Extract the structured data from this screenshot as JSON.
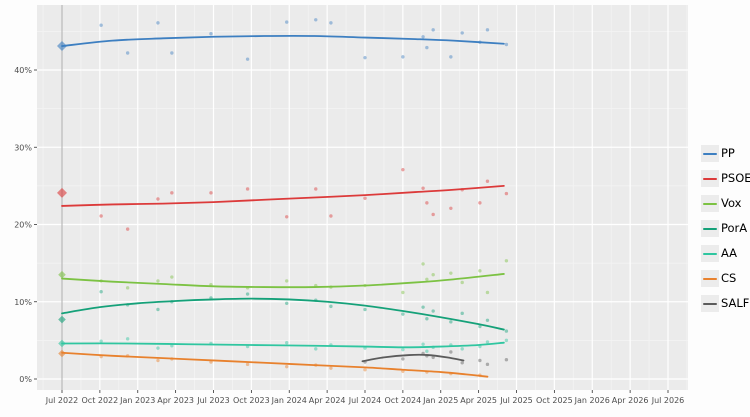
{
  "window": {
    "background": "#fdfdfd"
  },
  "chart_data": {
    "type": "scatter",
    "title": "",
    "subtitle": "",
    "xlabel": "",
    "ylabel": "",
    "grid": true,
    "panel": {
      "background": "#ebebeb",
      "grid_major_color": "#ffffff",
      "grid_minor_color": "#f4f4f4",
      "axis_text_color": "#4d4d4d",
      "election_marker_month": 0,
      "election_marker_color": "#ababab"
    },
    "x_axis": {
      "tick_months": [
        0,
        3,
        6,
        9,
        12,
        15,
        18,
        21,
        24,
        27,
        30,
        33,
        36,
        39,
        42,
        45,
        48
      ],
      "tick_labels": [
        "Jul 2022",
        "Oct 2022",
        "Jan 2023",
        "Apr 2023",
        "Jul 2023",
        "Oct 2023",
        "Jan 2024",
        "Apr 2024",
        "Jul 2024",
        "Oct 2024",
        "Jan 2025",
        "Apr 2025",
        "Jul 2025",
        "Oct 2025",
        "Jan 2026",
        "Apr 2026",
        "Jul 2026"
      ],
      "range_months": [
        -2,
        49.6
      ]
    },
    "y_axis": {
      "tick_values": [
        0,
        10,
        20,
        30,
        40
      ],
      "tick_labels": [
        "0%",
        "10%",
        "20%",
        "30%",
        "40%"
      ],
      "minor_values": [
        5,
        15,
        25,
        35,
        45
      ],
      "range": [
        -1.4,
        48.4
      ]
    },
    "legend": {
      "position": "right",
      "entries": [
        "PP",
        "PSOE",
        "Vox",
        "PorA",
        "AA",
        "CS",
        "SALF"
      ]
    },
    "series": [
      {
        "name": "PP",
        "color": "#3d7fc1",
        "election_result": 43.1,
        "trend": [
          [
            0,
            43.1
          ],
          [
            4,
            43.8
          ],
          [
            8,
            44.1
          ],
          [
            12,
            44.3
          ],
          [
            16,
            44.4
          ],
          [
            20,
            44.4
          ],
          [
            24,
            44.2
          ],
          [
            28,
            44.0
          ],
          [
            31,
            43.8
          ],
          [
            35,
            43.4
          ]
        ]
      },
      {
        "name": "PSOE",
        "color": "#dc3a3a",
        "election_result": 24.1,
        "trend": [
          [
            0,
            22.4
          ],
          [
            4,
            22.6
          ],
          [
            8,
            22.7
          ],
          [
            12,
            22.9
          ],
          [
            16,
            23.2
          ],
          [
            20,
            23.5
          ],
          [
            24,
            23.8
          ],
          [
            28,
            24.2
          ],
          [
            31,
            24.5
          ],
          [
            35,
            25.0
          ]
        ]
      },
      {
        "name": "Vox",
        "color": "#7cc243",
        "election_result": 13.5,
        "trend": [
          [
            0,
            13.0
          ],
          [
            4,
            12.6
          ],
          [
            8,
            12.3
          ],
          [
            12,
            12.0
          ],
          [
            16,
            11.9
          ],
          [
            20,
            11.9
          ],
          [
            24,
            12.1
          ],
          [
            28,
            12.5
          ],
          [
            31,
            12.9
          ],
          [
            35,
            13.6
          ]
        ]
      },
      {
        "name": "PorA",
        "color": "#15a179",
        "election_result": 7.7,
        "trend": [
          [
            0,
            8.5
          ],
          [
            3,
            9.3
          ],
          [
            6,
            9.8
          ],
          [
            9,
            10.1
          ],
          [
            12,
            10.3
          ],
          [
            15,
            10.4
          ],
          [
            18,
            10.3
          ],
          [
            21,
            10.0
          ],
          [
            24,
            9.5
          ],
          [
            27,
            8.8
          ],
          [
            30,
            8.0
          ],
          [
            33,
            7.1
          ],
          [
            35,
            6.4
          ]
        ]
      },
      {
        "name": "AA",
        "color": "#2fc6a0",
        "election_result": 4.6,
        "trend": [
          [
            0,
            4.6
          ],
          [
            5,
            4.6
          ],
          [
            10,
            4.5
          ],
          [
            15,
            4.4
          ],
          [
            20,
            4.3
          ],
          [
            24,
            4.2
          ],
          [
            27,
            4.1
          ],
          [
            30,
            4.2
          ],
          [
            33,
            4.4
          ],
          [
            35,
            4.7
          ]
        ]
      },
      {
        "name": "CS",
        "color": "#e8812d",
        "election_result": 3.3,
        "trend": [
          [
            0,
            3.4
          ],
          [
            4,
            3.0
          ],
          [
            8,
            2.7
          ],
          [
            12,
            2.4
          ],
          [
            16,
            2.1
          ],
          [
            20,
            1.8
          ],
          [
            24,
            1.5
          ],
          [
            27,
            1.2
          ],
          [
            30,
            0.9
          ],
          [
            32,
            0.6
          ],
          [
            33.7,
            0.3
          ]
        ]
      },
      {
        "name": "SALF",
        "color": "#5b5b5b",
        "election_result": null,
        "trend": [
          [
            23.8,
            2.3
          ],
          [
            25.5,
            2.8
          ],
          [
            27.5,
            3.1
          ],
          [
            29,
            3.1
          ],
          [
            30.5,
            2.8
          ],
          [
            31.8,
            2.4
          ]
        ]
      }
    ],
    "polls": [
      {
        "m": 3.1,
        "PP": 45.8,
        "PSOE": 21.1,
        "Vox": 12.7,
        "PorA": 11.3,
        "AA": 4.9,
        "CS": 2.9,
        "SALF": null
      },
      {
        "m": 5.2,
        "PP": 42.2,
        "PSOE": 19.4,
        "Vox": 11.8,
        "PorA": 9.6,
        "AA": 5.2,
        "CS": 3.0,
        "SALF": null
      },
      {
        "m": 7.6,
        "PP": 46.1,
        "PSOE": 23.3,
        "Vox": 12.7,
        "PorA": 9.0,
        "AA": 4.0,
        "CS": 2.4,
        "SALF": null
      },
      {
        "m": 8.7,
        "PP": 42.2,
        "PSOE": 24.1,
        "Vox": 13.2,
        "PorA": 10.0,
        "AA": 4.3,
        "CS": 2.6,
        "SALF": null
      },
      {
        "m": 11.8,
        "PP": 44.7,
        "PSOE": 24.1,
        "Vox": 12.2,
        "PorA": 10.5,
        "AA": 4.6,
        "CS": 2.2,
        "SALF": null
      },
      {
        "m": 14.7,
        "PP": 41.4,
        "PSOE": 24.6,
        "Vox": 11.8,
        "PorA": 11.0,
        "AA": 4.2,
        "CS": 1.9,
        "SALF": null
      },
      {
        "m": 17.8,
        "PP": 46.2,
        "PSOE": 21.0,
        "Vox": 12.7,
        "PorA": 9.8,
        "AA": 4.7,
        "CS": 1.6,
        "SALF": null
      },
      {
        "m": 20.1,
        "PP": 46.5,
        "PSOE": 24.6,
        "Vox": 12.1,
        "PorA": 10.2,
        "AA": 3.9,
        "CS": 1.8,
        "SALF": null
      },
      {
        "m": 21.3,
        "PP": 46.1,
        "PSOE": 21.1,
        "Vox": 11.9,
        "PorA": 9.4,
        "AA": 4.4,
        "CS": 1.4,
        "SALF": null
      },
      {
        "m": 24.0,
        "PP": 41.6,
        "PSOE": 23.4,
        "Vox": 12.1,
        "PorA": 9.0,
        "AA": 4.0,
        "CS": 1.2,
        "SALF": 2.2
      },
      {
        "m": 27.0,
        "PP": 41.7,
        "PSOE": 27.1,
        "Vox": 11.2,
        "PorA": 8.4,
        "AA": 3.8,
        "CS": 1.0,
        "SALF": 2.6
      },
      {
        "m": 28.6,
        "PP": 44.3,
        "PSOE": 24.7,
        "Vox": 14.9,
        "PorA": 9.3,
        "AA": 4.5,
        "CS": null,
        "SALF": 3.3
      },
      {
        "m": 28.9,
        "PP": 42.9,
        "PSOE": 22.8,
        "Vox": 12.9,
        "PorA": 7.8,
        "AA": 3.6,
        "CS": 0.9,
        "SALF": 3.0
      },
      {
        "m": 29.4,
        "PP": 45.2,
        "PSOE": 21.3,
        "Vox": 13.5,
        "PorA": 8.8,
        "AA": 4.1,
        "CS": null,
        "SALF": 2.8
      },
      {
        "m": 30.8,
        "PP": 41.7,
        "PSOE": 22.1,
        "Vox": 13.7,
        "PorA": 7.4,
        "AA": 4.4,
        "CS": 0.7,
        "SALF": 3.5
      },
      {
        "m": 31.7,
        "PP": 44.8,
        "PSOE": 24.5,
        "Vox": 12.5,
        "PorA": 8.5,
        "AA": 3.9,
        "CS": null,
        "SALF": 2.1
      },
      {
        "m": 33.1,
        "PP": 43.6,
        "PSOE": 22.8,
        "Vox": 14.0,
        "PorA": 6.8,
        "AA": 4.2,
        "CS": 0.5,
        "SALF": 2.4
      },
      {
        "m": 33.7,
        "PP": 45.2,
        "PSOE": 25.6,
        "Vox": 11.2,
        "PorA": 7.6,
        "AA": 4.8,
        "CS": null,
        "SALF": 1.9
      },
      {
        "m": 35.2,
        "PP": 43.3,
        "PSOE": 24.0,
        "Vox": 15.3,
        "PorA": 6.2,
        "AA": 5.0,
        "CS": null,
        "SALF": 2.5
      }
    ]
  }
}
